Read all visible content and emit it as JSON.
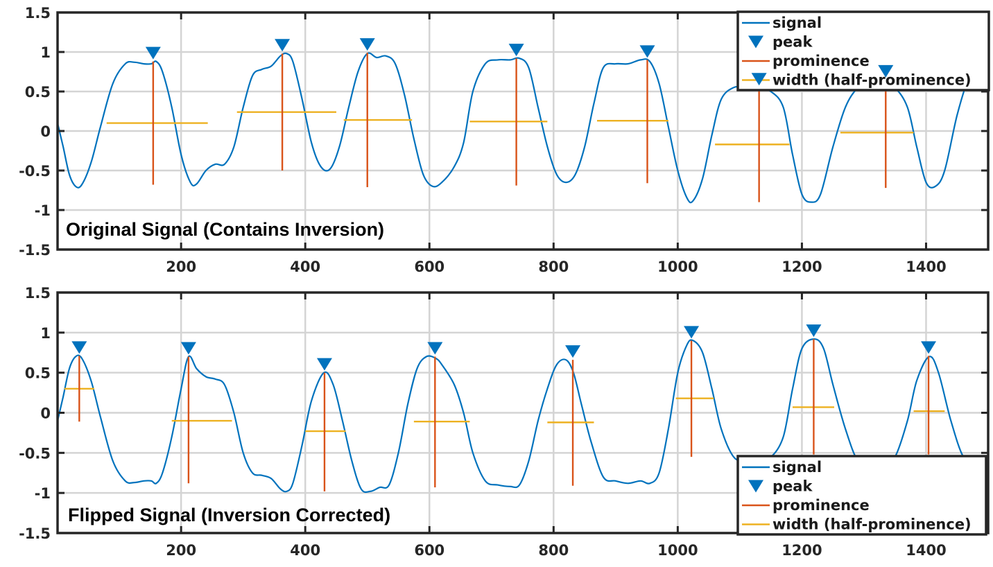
{
  "colors": {
    "signal": "#0072BD",
    "peak": "#0072BD",
    "prominence": "#D95319",
    "width": "#EDB120",
    "grid": "#d4d4d4",
    "axis": "#262626"
  },
  "legend_labels": [
    "signal",
    "peak",
    "prominence",
    "width (half-prominence)"
  ],
  "chart_data": [
    {
      "type": "line",
      "title": "Original Signal (Contains Inversion)",
      "legend_location": "top-right",
      "xlim": [
        1,
        1500
      ],
      "ylim": [
        -1.5,
        1.5
      ],
      "xticks": [
        200,
        400,
        600,
        800,
        1000,
        1200,
        1400
      ],
      "yticks": [
        -1.5,
        -1,
        -0.5,
        0,
        0.5,
        1,
        1.5
      ],
      "ytick_labels": [
        "-1.5",
        "-1",
        "-0.5",
        "0",
        "0.5",
        "1",
        "1.5"
      ],
      "grid": true,
      "signal": {
        "x": [
          1,
          10,
          20,
          30,
          40,
          55,
          70,
          90,
          110,
          125,
          140,
          152,
          160,
          170,
          185,
          200,
          215,
          225,
          240,
          255,
          270,
          285,
          300,
          315,
          330,
          345,
          360,
          370,
          380,
          395,
          410,
          425,
          440,
          455,
          470,
          485,
          500,
          515,
          530,
          545,
          560,
          575,
          590,
          605,
          620,
          640,
          655,
          670,
          690,
          710,
          730,
          745,
          760,
          775,
          790,
          805,
          820,
          835,
          850,
          865,
          880,
          900,
          920,
          940,
          955,
          970,
          985,
          1000,
          1015,
          1025,
          1040,
          1055,
          1070,
          1090,
          1110,
          1130,
          1150,
          1170,
          1185,
          1200,
          1215,
          1230,
          1250,
          1270,
          1290,
          1310,
          1330,
          1350,
          1370,
          1385,
          1400,
          1415,
          1430,
          1450,
          1470,
          1485,
          1500
        ],
        "y": [
          0.1,
          -0.2,
          -0.55,
          -0.7,
          -0.68,
          -0.4,
          0.05,
          0.6,
          0.85,
          0.87,
          0.85,
          0.85,
          0.88,
          0.75,
          0.3,
          -0.3,
          -0.65,
          -0.67,
          -0.5,
          -0.42,
          -0.42,
          -0.2,
          0.3,
          0.7,
          0.78,
          0.82,
          0.95,
          0.98,
          0.88,
          0.4,
          -0.15,
          -0.45,
          -0.48,
          -0.2,
          0.3,
          0.75,
          0.98,
          0.93,
          0.95,
          0.85,
          0.45,
          -0.1,
          -0.55,
          -0.7,
          -0.65,
          -0.45,
          -0.15,
          0.5,
          0.85,
          0.9,
          0.9,
          0.92,
          0.8,
          0.3,
          -0.2,
          -0.55,
          -0.65,
          -0.55,
          -0.2,
          0.35,
          0.8,
          0.85,
          0.85,
          0.9,
          0.88,
          0.6,
          0.05,
          -0.5,
          -0.85,
          -0.88,
          -0.6,
          -0.05,
          0.4,
          0.55,
          0.55,
          0.55,
          0.5,
          0.3,
          -0.3,
          -0.8,
          -0.9,
          -0.8,
          -0.2,
          0.3,
          0.55,
          0.65,
          0.65,
          0.55,
          0.3,
          -0.2,
          -0.65,
          -0.7,
          -0.5,
          0.2,
          0.7,
          0.85,
          0.75
        ]
      },
      "peaks": {
        "x": [
          155,
          363,
          500,
          740,
          951,
          1131,
          1335
        ],
        "y": [
          0.88,
          0.98,
          0.99,
          0.92,
          0.9,
          0.55,
          0.65
        ],
        "prominence_bottom": [
          -0.68,
          -0.5,
          -0.71,
          -0.69,
          -0.66,
          -0.9,
          -0.72
        ],
        "width_level": [
          0.1,
          0.24,
          0.14,
          0.12,
          0.13,
          -0.17,
          -0.02
        ],
        "width_left": [
          80,
          290,
          462,
          665,
          870,
          1060,
          1262
        ],
        "width_right": [
          243,
          450,
          572,
          790,
          985,
          1180,
          1380
        ]
      }
    },
    {
      "type": "line",
      "title": "Flipped Signal (Inversion Corrected)",
      "legend_location": "bottom-right",
      "xlim": [
        1,
        1500
      ],
      "ylim": [
        -1.5,
        1.5
      ],
      "xticks": [
        200,
        400,
        600,
        800,
        1000,
        1200,
        1400
      ],
      "yticks": [
        -1.5,
        -1,
        -0.5,
        0,
        0.5,
        1,
        1.5
      ],
      "ytick_labels": [
        "-1.5",
        "-1",
        "-0.5",
        "0",
        "0.5",
        "1",
        "1.5"
      ],
      "grid": true,
      "signal": {
        "x": [
          1,
          10,
          20,
          30,
          40,
          55,
          70,
          90,
          110,
          125,
          140,
          152,
          160,
          170,
          185,
          200,
          212,
          225,
          240,
          255,
          270,
          285,
          300,
          315,
          330,
          345,
          360,
          370,
          380,
          395,
          410,
          430,
          445,
          460,
          475,
          490,
          505,
          520,
          535,
          550,
          565,
          580,
          595,
          610,
          620,
          640,
          655,
          670,
          690,
          710,
          730,
          745,
          760,
          775,
          790,
          805,
          820,
          832,
          845,
          860,
          880,
          900,
          920,
          940,
          955,
          970,
          985,
          1000,
          1015,
          1025,
          1040,
          1055,
          1070,
          1090,
          1110,
          1130,
          1150,
          1170,
          1185,
          1200,
          1220,
          1235,
          1250,
          1270,
          1290,
          1310,
          1330,
          1350,
          1370,
          1385,
          1405,
          1420,
          1440,
          1460,
          1480,
          1500
        ],
        "y": [
          -0.1,
          0.2,
          0.55,
          0.7,
          0.68,
          0.4,
          -0.05,
          -0.6,
          -0.85,
          -0.87,
          -0.85,
          -0.85,
          -0.88,
          -0.75,
          -0.3,
          0.3,
          0.7,
          0.55,
          0.45,
          0.42,
          0.35,
          0.0,
          -0.5,
          -0.75,
          -0.78,
          -0.82,
          -0.95,
          -0.98,
          -0.88,
          -0.4,
          0.15,
          0.5,
          0.35,
          -0.1,
          -0.6,
          -0.95,
          -0.98,
          -0.93,
          -0.9,
          -0.5,
          0.1,
          0.55,
          0.7,
          0.68,
          0.6,
          0.35,
          0.0,
          -0.5,
          -0.85,
          -0.9,
          -0.92,
          -0.9,
          -0.6,
          -0.1,
          0.3,
          0.6,
          0.66,
          0.5,
          0.1,
          -0.35,
          -0.8,
          -0.85,
          -0.88,
          -0.85,
          -0.88,
          -0.75,
          -0.2,
          0.5,
          0.85,
          0.9,
          0.75,
          0.3,
          -0.2,
          -0.55,
          -0.6,
          -0.55,
          -0.55,
          -0.3,
          0.3,
          0.8,
          0.92,
          0.8,
          0.35,
          -0.2,
          -0.6,
          -0.65,
          -0.65,
          -0.55,
          -0.1,
          0.4,
          0.7,
          0.5,
          -0.1,
          -0.55,
          -0.65,
          -0.6
        ]
      },
      "peaks": {
        "x": [
          36,
          212,
          431,
          609,
          831,
          1022,
          1219,
          1404
        ],
        "y": [
          0.71,
          0.7,
          0.5,
          0.7,
          0.66,
          0.9,
          0.92,
          0.71
        ],
        "prominence_bottom": [
          -0.11,
          -0.88,
          -0.98,
          -0.93,
          -0.91,
          -0.55,
          -0.52,
          -0.52
        ],
        "width_level": [
          0.3,
          -0.1,
          -0.23,
          -0.11,
          -0.12,
          0.18,
          0.07,
          0.02
        ],
        "width_left": [
          12,
          185,
          400,
          575,
          790,
          997,
          1185,
          1380
        ],
        "width_right": [
          60,
          282,
          465,
          665,
          865,
          1058,
          1252,
          1430
        ]
      }
    }
  ]
}
